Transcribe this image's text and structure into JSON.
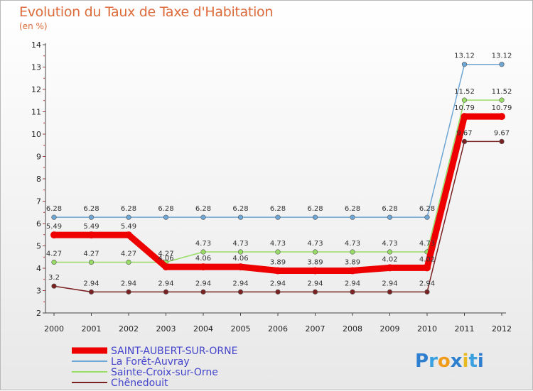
{
  "title": "Evolution du Taux de Taxe d'Habitation",
  "subtitle": "(en %)",
  "logo": "Proxiti",
  "chart_data": {
    "type": "line",
    "title": "Evolution du Taux de Taxe d'Habitation",
    "ylabel": "(en %)",
    "xlabel": "",
    "ylim": [
      2,
      14
    ],
    "yticks": [
      2,
      3,
      4,
      5,
      6,
      7,
      8,
      9,
      10,
      11,
      12,
      13,
      14
    ],
    "grid": false,
    "legend_position": "bottom-left",
    "x": [
      "2000",
      "2001",
      "2002",
      "2003",
      "2004",
      "2005",
      "2006",
      "2007",
      "2008",
      "2009",
      "2010",
      "2011",
      "2012"
    ],
    "series": [
      {
        "name": "SAINT-AUBERT-SUR-ORNE",
        "color": "#ee0000",
        "values": [
          5.49,
          5.49,
          5.49,
          4.06,
          4.06,
          4.06,
          3.89,
          3.89,
          3.89,
          4.02,
          4.02,
          10.79,
          10.79
        ],
        "labels": [
          "5.49",
          "5.49",
          "5.49",
          "4.06",
          "4.06",
          "4.06",
          "3.89",
          "3.89",
          "3.89",
          "4.02",
          "4.02",
          "10.79",
          "10.79"
        ]
      },
      {
        "name": "La Forêt-Auvray",
        "color": "#6ea6d6",
        "values": [
          6.28,
          6.28,
          6.28,
          6.28,
          6.28,
          6.28,
          6.28,
          6.28,
          6.28,
          6.28,
          6.28,
          13.12,
          13.12
        ],
        "labels": [
          "6.28",
          "6.28",
          "6.28",
          "6.28",
          "6.28",
          "6.28",
          "6.28",
          "6.28",
          "6.28",
          "6.28",
          "6.28",
          "13.12",
          "13.12"
        ]
      },
      {
        "name": "Sainte-Croix-sur-Orne",
        "color": "#99dd66",
        "values": [
          4.27,
          4.27,
          4.27,
          4.27,
          4.73,
          4.73,
          4.73,
          4.73,
          4.73,
          4.73,
          4.73,
          11.52,
          11.52
        ],
        "labels": [
          "4.27",
          "4.27",
          "4.27",
          "4.27",
          "4.73",
          "4.73",
          "4.73",
          "4.73",
          "4.73",
          "4.73",
          "4.73",
          "11.52",
          "11.52"
        ]
      },
      {
        "name": "Chênedouit",
        "color": "#7a2222",
        "values": [
          3.2,
          2.94,
          2.94,
          2.94,
          2.94,
          2.94,
          2.94,
          2.94,
          2.94,
          2.94,
          2.94,
          9.67,
          9.67
        ],
        "labels": [
          "3.2",
          "2.94",
          "2.94",
          "2.94",
          "2.94",
          "2.94",
          "2.94",
          "2.94",
          "2.94",
          "2.94",
          "2.94",
          "9.67",
          "9.67"
        ]
      }
    ]
  }
}
